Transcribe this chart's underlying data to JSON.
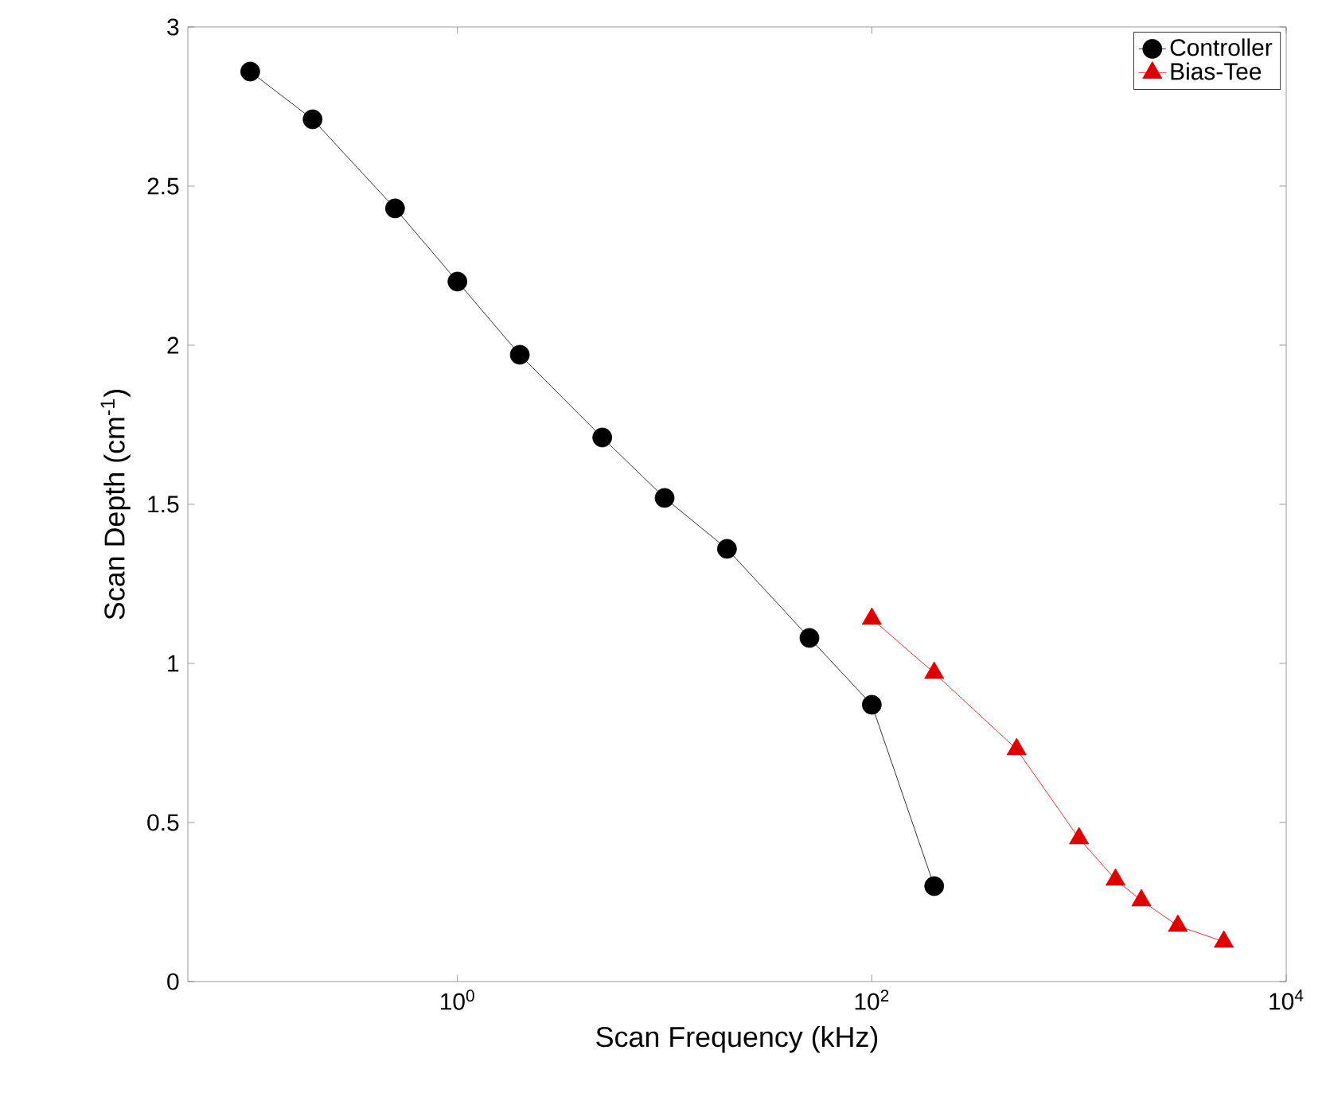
{
  "chart_data": {
    "type": "line",
    "xlabel": "Scan Frequency (kHz)",
    "ylabel": "Scan Depth (cm$^{-1}$)",
    "log": "x",
    "xlim": [
      0.05,
      10000
    ],
    "ylim": [
      0,
      3
    ],
    "xticks": [
      {
        "value": 1,
        "label": "10$^{0}$"
      },
      {
        "value": 100,
        "label": "10$^{2}$"
      },
      {
        "value": 10000,
        "label": "10$^{4}$"
      }
    ],
    "yticks": [
      0,
      0.5,
      1,
      1.5,
      2,
      2.5,
      3
    ],
    "grid": false,
    "legend": "top right",
    "line_style": "solid",
    "series": [
      {
        "name": "Controller",
        "color": "#000000",
        "marker": "circle",
        "x": [
          0.1,
          0.2,
          0.5,
          1,
          2,
          5,
          10,
          20,
          50,
          100,
          200
        ],
        "values": [
          2.86,
          2.71,
          2.43,
          2.2,
          1.97,
          1.71,
          1.52,
          1.36,
          1.08,
          0.87,
          0.3
        ]
      },
      {
        "name": "Bias-Tee",
        "color": "#dd0000",
        "marker": "triangle",
        "x": [
          100,
          200,
          500,
          1000,
          1500,
          2000,
          3000,
          5000
        ],
        "values": [
          1.14,
          0.97,
          0.73,
          0.45,
          0.32,
          0.255,
          0.175,
          0.125
        ]
      }
    ]
  }
}
